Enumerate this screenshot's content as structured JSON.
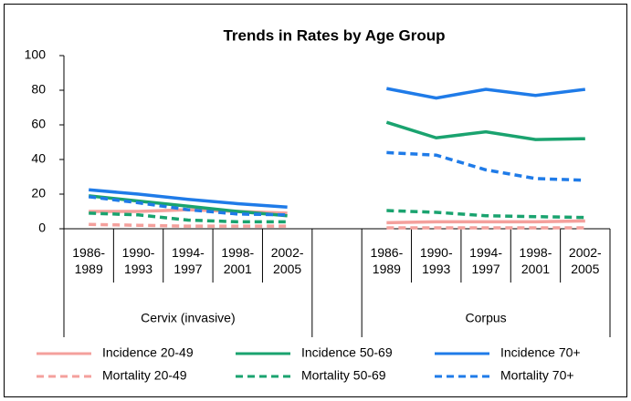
{
  "chart_data": {
    "type": "line",
    "title": "Trends in Rates by Age Group",
    "categories": [
      "1986-1989",
      "1990-1993",
      "1994-1997",
      "1998-2001",
      "2002-2005",
      null,
      "1986-1989",
      "1990-1993",
      "1994-1997",
      "1998-2001",
      "2002-2005"
    ],
    "group_labels": [
      "Cervix (invasive)",
      "Corpus"
    ],
    "ylim": [
      0,
      100
    ],
    "yticks": [
      0,
      20,
      40,
      60,
      80,
      100
    ],
    "grid": false,
    "legend": "bottom",
    "series": [
      {
        "name": "Incidence 20-49",
        "color": "#f4a09c",
        "dashed": false,
        "values": [
          10,
          10,
          11,
          10,
          9,
          null,
          3.5,
          4,
          4,
          4,
          4.5
        ]
      },
      {
        "name": "Incidence 50-69",
        "color": "#1aa36f",
        "dashed": false,
        "values": [
          19,
          16,
          13,
          10,
          7.5,
          null,
          61.5,
          52.5,
          56,
          51.5,
          52
        ]
      },
      {
        "name": "Incidence 70+",
        "color": "#1f7be8",
        "dashed": false,
        "values": [
          22.5,
          20,
          17,
          14.5,
          12.5,
          null,
          81,
          75.5,
          80.5,
          77,
          80.5
        ]
      },
      {
        "name": "Mortality 20-49",
        "color": "#f4a09c",
        "dashed": true,
        "values": [
          2.5,
          2,
          1.5,
          1.5,
          1.5,
          null,
          0.5,
          0.5,
          0.5,
          0.5,
          0.5
        ]
      },
      {
        "name": "Mortality 50-69",
        "color": "#1aa36f",
        "dashed": true,
        "values": [
          9,
          8,
          5,
          4,
          4,
          null,
          10.5,
          9.5,
          7.5,
          7,
          6.5
        ]
      },
      {
        "name": "Mortality 70+",
        "color": "#1f7be8",
        "dashed": true,
        "values": [
          18.5,
          15,
          11,
          8.5,
          8,
          null,
          44,
          42.5,
          34,
          29,
          28
        ]
      }
    ]
  }
}
